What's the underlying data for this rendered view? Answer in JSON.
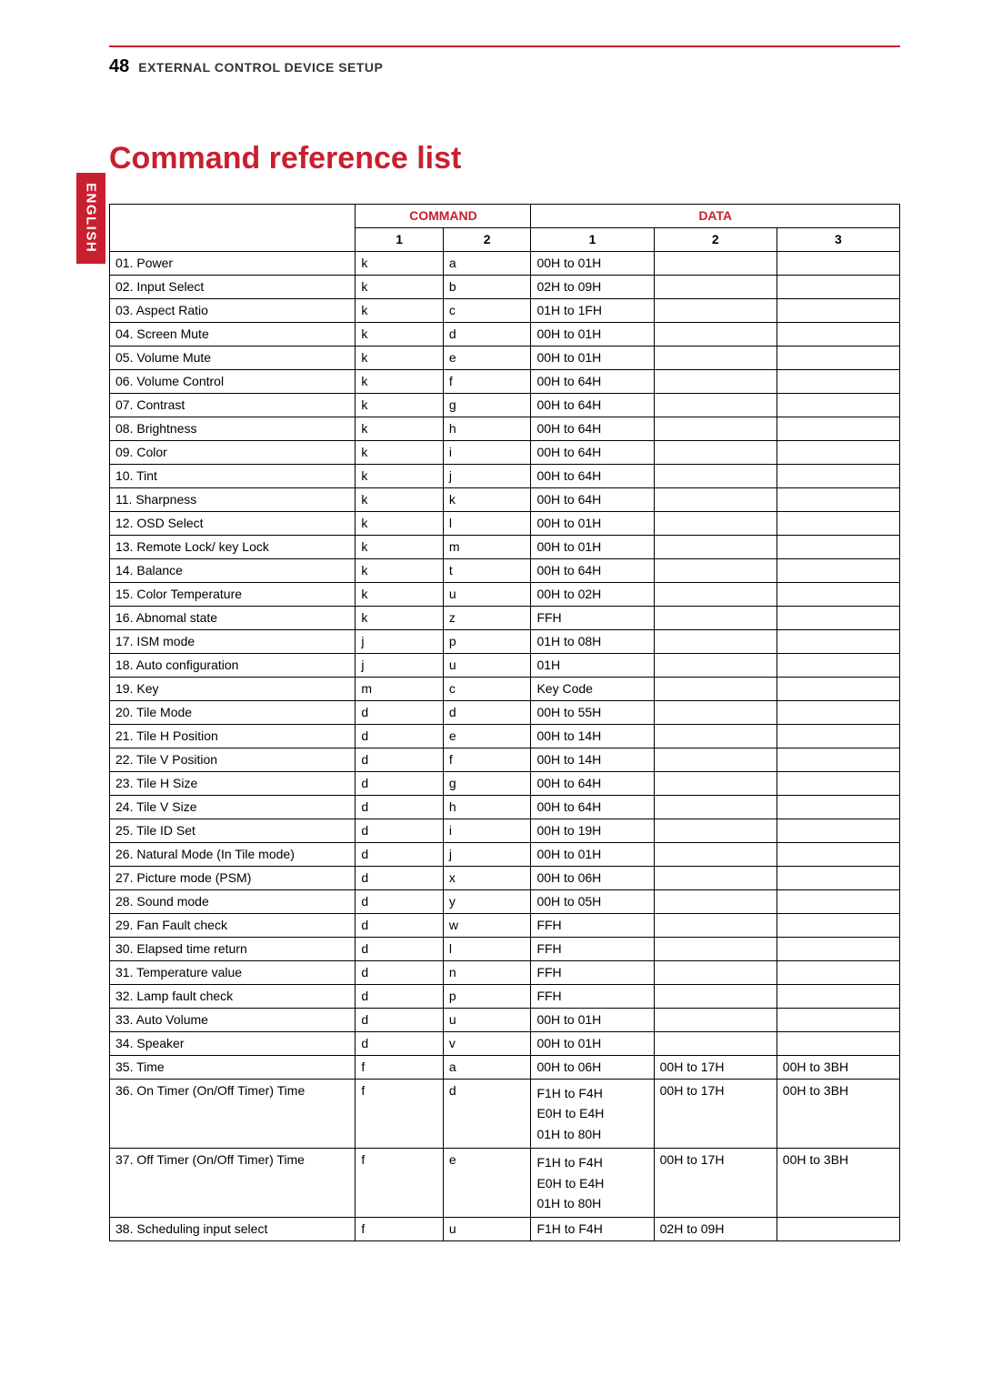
{
  "page": {
    "number": "48",
    "section": "External Control Device Setup",
    "language_tab": "ENGLISH",
    "title": "Command reference list"
  },
  "colors": {
    "accent": "#c8202f",
    "text": "#000000",
    "background": "#ffffff"
  },
  "table": {
    "group_headers": {
      "blank": "",
      "command": "COMMAND",
      "data": "DATA"
    },
    "sub_headers": {
      "c1": "1",
      "c2": "2",
      "d1": "1",
      "d2": "2",
      "d3": "3"
    },
    "rows": [
      {
        "name": "01. Power",
        "c1": "k",
        "c2": "a",
        "d1": "00H to 01H",
        "d2": "",
        "d3": ""
      },
      {
        "name": "02. Input Select",
        "c1": "k",
        "c2": "b",
        "d1": "02H to 09H",
        "d2": "",
        "d3": ""
      },
      {
        "name": "03. Aspect Ratio",
        "c1": "k",
        "c2": "c",
        "d1": "01H to 1FH",
        "d2": "",
        "d3": ""
      },
      {
        "name": "04. Screen Mute",
        "c1": "k",
        "c2": "d",
        "d1": "00H to 01H",
        "d2": "",
        "d3": ""
      },
      {
        "name": "05. Volume Mute",
        "c1": "k",
        "c2": "e",
        "d1": "00H to 01H",
        "d2": "",
        "d3": ""
      },
      {
        "name": "06. Volume Control",
        "c1": "k",
        "c2": "f",
        "d1": "00H to 64H",
        "d2": "",
        "d3": ""
      },
      {
        "name": "07. Contrast",
        "c1": "k",
        "c2": "g",
        "d1": "00H to 64H",
        "d2": "",
        "d3": ""
      },
      {
        "name": "08. Brightness",
        "c1": "k",
        "c2": "h",
        "d1": "00H to 64H",
        "d2": "",
        "d3": ""
      },
      {
        "name": "09. Color",
        "c1": "k",
        "c2": "i",
        "d1": "00H to 64H",
        "d2": "",
        "d3": ""
      },
      {
        "name": "10. Tint",
        "c1": "k",
        "c2": "j",
        "d1": "00H to 64H",
        "d2": "",
        "d3": ""
      },
      {
        "name": "11. Sharpness",
        "c1": "k",
        "c2": "k",
        "d1": "00H to 64H",
        "d2": "",
        "d3": ""
      },
      {
        "name": "12. OSD Select",
        "c1": "k",
        "c2": "l",
        "d1": "00H to 01H",
        "d2": "",
        "d3": ""
      },
      {
        "name": "13. Remote Lock/ key Lock",
        "c1": "k",
        "c2": "m",
        "d1": "00H to 01H",
        "d2": "",
        "d3": ""
      },
      {
        "name": "14. Balance",
        "c1": "k",
        "c2": "t",
        "d1": "00H to 64H",
        "d2": "",
        "d3": ""
      },
      {
        "name": "15. Color Temperature",
        "c1": "k",
        "c2": "u",
        "d1": "00H to 02H",
        "d2": "",
        "d3": ""
      },
      {
        "name": "16. Abnomal state",
        "c1": "k",
        "c2": "z",
        "d1": "FFH",
        "d2": "",
        "d3": ""
      },
      {
        "name": "17. ISM mode",
        "c1": "j",
        "c2": "p",
        "d1": "01H to 08H",
        "d2": "",
        "d3": ""
      },
      {
        "name": "18. Auto configuration",
        "c1": "j",
        "c2": "u",
        "d1": "01H",
        "d2": "",
        "d3": ""
      },
      {
        "name": "19. Key",
        "c1": "m",
        "c2": "c",
        "d1": "Key Code",
        "d2": "",
        "d3": ""
      },
      {
        "name": "20. Tile Mode",
        "c1": "d",
        "c2": "d",
        "d1": "00H to 55H",
        "d2": "",
        "d3": ""
      },
      {
        "name": "21. Tile H Position",
        "c1": "d",
        "c2": "e",
        "d1": "00H to 14H",
        "d2": "",
        "d3": ""
      },
      {
        "name": "22. Tile V Position",
        "c1": "d",
        "c2": "f",
        "d1": "00H to 14H",
        "d2": "",
        "d3": ""
      },
      {
        "name": "23. Tile H Size",
        "c1": "d",
        "c2": "g",
        "d1": "00H to 64H",
        "d2": "",
        "d3": ""
      },
      {
        "name": "24. Tile V Size",
        "c1": "d",
        "c2": "h",
        "d1": "00H to 64H",
        "d2": "",
        "d3": ""
      },
      {
        "name": "25. Tile ID Set",
        "c1": "d",
        "c2": "i",
        "d1": "00H to 19H",
        "d2": "",
        "d3": ""
      },
      {
        "name": "26. Natural Mode (In Tile mode)",
        "c1": "d",
        "c2": "j",
        "d1": "00H to 01H",
        "d2": "",
        "d3": ""
      },
      {
        "name": "27. Picture mode (PSM)",
        "c1": "d",
        "c2": "x",
        "d1": "00H to 06H",
        "d2": "",
        "d3": ""
      },
      {
        "name": "28. Sound mode",
        "c1": "d",
        "c2": "y",
        "d1": "00H to 05H",
        "d2": "",
        "d3": ""
      },
      {
        "name": "29. Fan Fault check",
        "c1": "d",
        "c2": "w",
        "d1": "FFH",
        "d2": "",
        "d3": ""
      },
      {
        "name": "30. Elapsed time return",
        "c1": "d",
        "c2": "l",
        "d1": "FFH",
        "d2": "",
        "d3": ""
      },
      {
        "name": "31. Temperature value",
        "c1": "d",
        "c2": "n",
        "d1": "FFH",
        "d2": "",
        "d3": ""
      },
      {
        "name": "32. Lamp fault check",
        "c1": "d",
        "c2": "p",
        "d1": "FFH",
        "d2": "",
        "d3": ""
      },
      {
        "name": "33. Auto Volume",
        "c1": "d",
        "c2": "u",
        "d1": "00H to 01H",
        "d2": "",
        "d3": ""
      },
      {
        "name": "34. Speaker",
        "c1": "d",
        "c2": "v",
        "d1": "00H to 01H",
        "d2": "",
        "d3": ""
      },
      {
        "name": "35. Time",
        "c1": "f",
        "c2": "a",
        "d1": "00H to 06H",
        "d2": "00H to 17H",
        "d3": "00H to 3BH"
      },
      {
        "name": "36. On Timer (On/Off Timer) Time",
        "c1": "f",
        "c2": "d",
        "d1": "F1H to F4H\nE0H to E4H\n01H to 80H",
        "d2": "00H to 17H",
        "d3": "00H to 3BH"
      },
      {
        "name": "37. Off Timer (On/Off Timer) Time",
        "c1": "f",
        "c2": "e",
        "d1": "F1H to F4H\nE0H to E4H\n01H to 80H",
        "d2": "00H to 17H",
        "d3": "00H to 3BH"
      },
      {
        "name": "38. Scheduling input select",
        "c1": "f",
        "c2": "u",
        "d1": "F1H to F4H",
        "d2": "02H to 09H",
        "d3": ""
      }
    ]
  }
}
